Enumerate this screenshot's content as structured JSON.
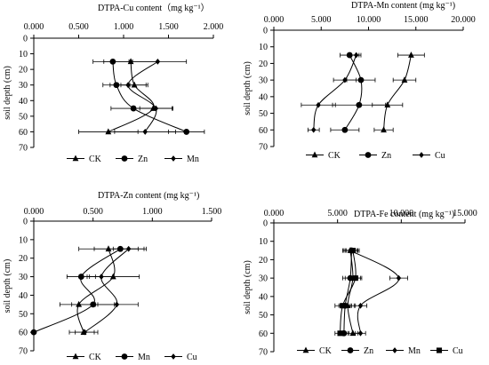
{
  "chart_data": [
    {
      "type": "line",
      "title": "DTPA-Cu content（mg kg⁻¹）",
      "xlabel": "",
      "ylabel": "soil depth (cm)",
      "xlim": [
        0,
        2.0
      ],
      "ylim": [
        0,
        70
      ],
      "x_ticks": [
        "0.000",
        "0.500",
        "1.000",
        "1.500",
        "2.000"
      ],
      "x_tick_values": [
        0,
        0.5,
        1.0,
        1.5,
        2.0
      ],
      "y_ticks": [
        0,
        10,
        20,
        30,
        40,
        50,
        60,
        70
      ],
      "depths": [
        15,
        30,
        45,
        60
      ],
      "legend_position": "bottom",
      "series": [
        {
          "name": "CK",
          "marker": "triangle",
          "x": [
            1.08,
            1.12,
            1.33,
            0.83
          ],
          "err": [
            0.3,
            0.15,
            0.22,
            0.33
          ]
        },
        {
          "name": "Zn",
          "marker": "circle",
          "x": [
            0.88,
            0.92,
            1.11,
            1.7
          ],
          "err": [
            0.22,
            0.15,
            0.25,
            0.2
          ]
        },
        {
          "name": "Mn",
          "marker": "diamond",
          "x": [
            1.38,
            1.05,
            1.36,
            1.24
          ],
          "err": [
            0.32,
            0.2,
            0.18,
            0.34
          ]
        }
      ]
    },
    {
      "type": "line",
      "title": "DTPA-Mn content (mg kg⁻¹)",
      "xlabel": "",
      "ylabel": "soil depth (cm)",
      "xlim": [
        0,
        20
      ],
      "ylim": [
        0,
        70
      ],
      "x_ticks": [
        "0.000",
        "5.000",
        "10.000",
        "15.000",
        "20.000"
      ],
      "x_tick_values": [
        0,
        5,
        10,
        15,
        20
      ],
      "y_ticks": [
        0,
        10,
        20,
        30,
        40,
        50,
        60,
        70
      ],
      "depths": [
        15,
        30,
        45,
        60
      ],
      "legend_position": "bottom",
      "series": [
        {
          "name": "CK",
          "marker": "triangle",
          "x": [
            14.5,
            13.8,
            12.0,
            11.6
          ],
          "err": [
            1.4,
            1.2,
            1.6,
            1.0
          ]
        },
        {
          "name": "Zn",
          "marker": "circle",
          "x": [
            8.0,
            9.2,
            9.0,
            7.5
          ],
          "err": [
            1.0,
            1.5,
            2.8,
            1.5
          ]
        },
        {
          "name": "Cu",
          "marker": "diamond",
          "x": [
            8.7,
            7.5,
            4.7,
            4.2
          ],
          "err": [
            0.5,
            1.2,
            1.8,
            0.6
          ]
        }
      ]
    },
    {
      "type": "line",
      "title": "DTPA-Zn content (mg kg⁻¹)",
      "xlabel": "",
      "ylabel": "soil depth (cm)",
      "xlim": [
        0,
        1.5
      ],
      "ylim": [
        0,
        70
      ],
      "x_ticks": [
        "0.000",
        "0.500",
        "1.000",
        "1.500"
      ],
      "x_tick_values": [
        0,
        0.5,
        1.0,
        1.5
      ],
      "y_ticks": [
        0,
        10,
        20,
        30,
        40,
        50,
        60,
        70
      ],
      "depths": [
        15,
        30,
        45,
        60
      ],
      "legend_position": "bottom",
      "series": [
        {
          "name": "CK",
          "marker": "triangle",
          "x": [
            0.63,
            0.67,
            0.38,
            0.42
          ],
          "err": [
            0.25,
            0.22,
            0.16,
            0.12
          ]
        },
        {
          "name": "Mn",
          "marker": "circle",
          "x": [
            0.73,
            0.4,
            0.5,
            0.0
          ],
          "err": [
            0.22,
            0.12,
            0.18,
            0.0
          ]
        },
        {
          "name": "Cu",
          "marker": "diamond",
          "x": [
            0.8,
            0.57,
            0.7,
            0.43
          ],
          "err": [
            0.13,
            0.1,
            0.18,
            0.08
          ]
        }
      ]
    },
    {
      "type": "line",
      "title": "DTPA-Fe content (mg kg⁻¹)",
      "xlabel": "",
      "ylabel": "soil depth (cm)",
      "xlim": [
        0,
        15
      ],
      "ylim": [
        0,
        70
      ],
      "x_ticks": [
        "0.000",
        "5.000",
        "10.000",
        "15.000"
      ],
      "x_tick_values": [
        0,
        5,
        10,
        15
      ],
      "y_ticks": [
        0,
        10,
        20,
        30,
        40,
        50,
        60,
        70
      ],
      "depths": [
        15,
        30,
        45,
        60
      ],
      "legend_position": "bottom",
      "series": [
        {
          "name": "CK",
          "marker": "triangle",
          "x": [
            6.0,
            6.2,
            5.8,
            6.2
          ],
          "err": [
            0.6,
            0.6,
            0.6,
            0.4
          ]
        },
        {
          "name": "Zn",
          "marker": "circle",
          "x": [
            6.1,
            6.0,
            5.6,
            5.5
          ],
          "err": [
            0.5,
            0.6,
            0.5,
            0.4
          ]
        },
        {
          "name": "Mn",
          "marker": "diamond",
          "x": [
            6.0,
            9.8,
            6.8,
            6.8
          ],
          "err": [
            0.5,
            0.7,
            0.5,
            0.4
          ]
        },
        {
          "name": "Cu",
          "marker": "square",
          "x": [
            6.2,
            6.4,
            5.4,
            5.2
          ],
          "err": [
            0.5,
            0.5,
            0.6,
            0.4
          ]
        }
      ]
    }
  ]
}
